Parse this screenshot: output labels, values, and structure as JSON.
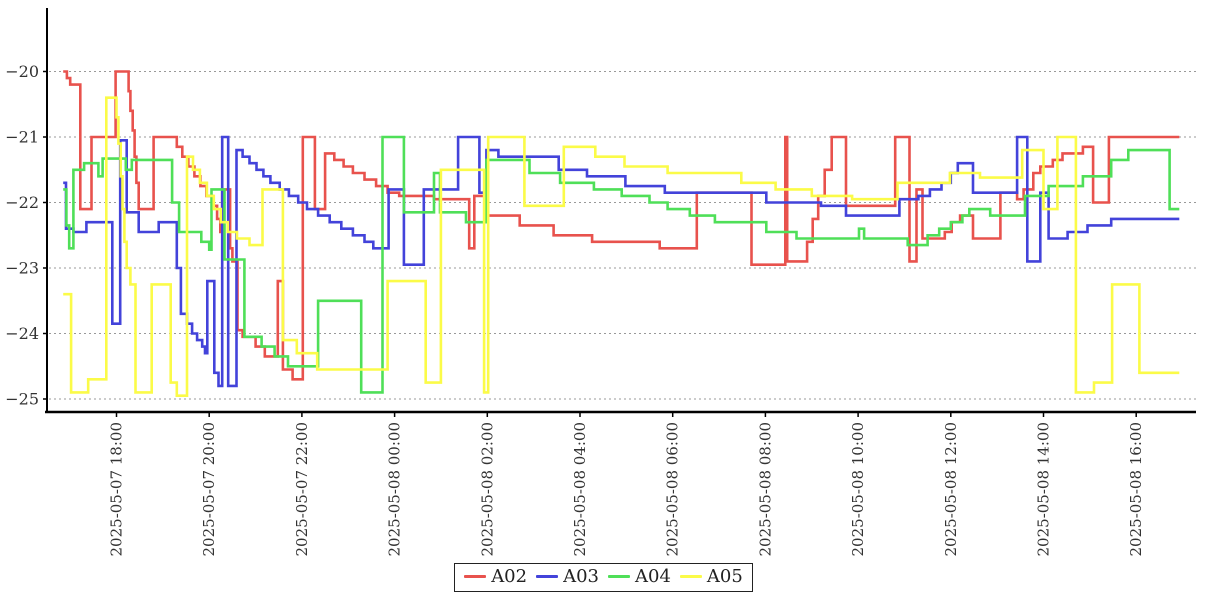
{
  "chart_data": {
    "type": "line",
    "step": true,
    "title": "",
    "xlabel": "",
    "ylabel": "",
    "grid": "horizontal-dotted",
    "legend_position": "bottom-center",
    "t_end": 22.93,
    "x_axis": {
      "tick_hours": [
        0,
        2,
        4,
        6,
        8,
        10,
        12,
        14,
        16,
        18,
        20,
        22
      ],
      "tick_labels": [
        "2025-05-07 18:00",
        "2025-05-07 20:00",
        "2025-05-07 22:00",
        "2025-05-08 00:00",
        "2025-05-08 02:00",
        "2025-05-08 04:00",
        "2025-05-08 06:00",
        "2025-05-08 08:00",
        "2025-05-08 10:00",
        "2025-05-08 12:00",
        "2025-05-08 14:00",
        "2025-05-08 16:00"
      ]
    },
    "y_axis": {
      "ticks": [
        -20,
        -21,
        -22,
        -23,
        -24,
        -25
      ],
      "tick_labels": [
        "−20",
        "−21",
        "−22",
        "−23",
        "−24",
        "−25"
      ],
      "range": [
        -25.4,
        -19.0
      ]
    },
    "series": [
      {
        "name": "A02",
        "color": "#e8524d",
        "points": [
          [
            -1.15,
            -20.0
          ],
          [
            -1.07,
            -20.1
          ],
          [
            -1.0,
            -20.2
          ],
          [
            -0.78,
            -22.1
          ],
          [
            -0.54,
            -21.0
          ],
          [
            -0.02,
            -20.0
          ],
          [
            0.26,
            -20.3
          ],
          [
            0.3,
            -20.6
          ],
          [
            0.35,
            -20.9
          ],
          [
            0.39,
            -21.3
          ],
          [
            0.43,
            -21.7
          ],
          [
            0.48,
            -22.1
          ],
          [
            0.8,
            -21.0
          ],
          [
            1.3,
            -21.15
          ],
          [
            1.42,
            -21.3
          ],
          [
            1.55,
            -21.45
          ],
          [
            1.68,
            -21.6
          ],
          [
            1.81,
            -21.75
          ],
          [
            1.94,
            -21.9
          ],
          [
            2.07,
            -22.05
          ],
          [
            2.17,
            -22.25
          ],
          [
            2.24,
            -22.45
          ],
          [
            2.28,
            -21.8
          ],
          [
            2.45,
            -22.7
          ],
          [
            2.5,
            -22.9
          ],
          [
            2.61,
            -23.95
          ],
          [
            2.72,
            -24.05
          ],
          [
            3.0,
            -24.2
          ],
          [
            3.2,
            -24.35
          ],
          [
            3.48,
            -23.2
          ],
          [
            3.59,
            -24.55
          ],
          [
            3.8,
            -24.7
          ],
          [
            4.02,
            -21.0
          ],
          [
            4.28,
            -22.1
          ],
          [
            4.5,
            -21.25
          ],
          [
            4.7,
            -21.35
          ],
          [
            4.9,
            -21.45
          ],
          [
            5.1,
            -21.55
          ],
          [
            5.35,
            -21.65
          ],
          [
            5.6,
            -21.75
          ],
          [
            5.85,
            -21.85
          ],
          [
            6.1,
            -21.9
          ],
          [
            6.85,
            -21.95
          ],
          [
            7.61,
            -22.7
          ],
          [
            7.72,
            -21.9
          ],
          [
            8.02,
            -22.2
          ],
          [
            8.7,
            -22.35
          ],
          [
            9.43,
            -22.5
          ],
          [
            10.26,
            -22.6
          ],
          [
            11.72,
            -22.7
          ],
          [
            12.52,
            -21.85
          ],
          [
            13.7,
            -22.95
          ],
          [
            14.43,
            -21.0
          ],
          [
            14.47,
            -22.9
          ],
          [
            14.9,
            -22.6
          ],
          [
            15.02,
            -22.25
          ],
          [
            15.14,
            -21.9
          ],
          [
            15.28,
            -21.5
          ],
          [
            15.43,
            -21.0
          ],
          [
            15.74,
            -22.05
          ],
          [
            16.8,
            -21.0
          ],
          [
            17.11,
            -22.9
          ],
          [
            17.26,
            -21.8
          ],
          [
            17.39,
            -22.55
          ],
          [
            17.87,
            -22.45
          ],
          [
            18.02,
            -22.3
          ],
          [
            18.2,
            -22.2
          ],
          [
            18.48,
            -22.55
          ],
          [
            19.07,
            -21.85
          ],
          [
            19.43,
            -21.95
          ],
          [
            19.57,
            -21.8
          ],
          [
            19.78,
            -21.55
          ],
          [
            19.93,
            -21.45
          ],
          [
            20.2,
            -21.35
          ],
          [
            20.41,
            -21.25
          ],
          [
            20.85,
            -21.15
          ],
          [
            21.07,
            -22.0
          ],
          [
            21.41,
            -21.0
          ]
        ]
      },
      {
        "name": "A03",
        "color": "#4343da",
        "points": [
          [
            -1.15,
            -21.7
          ],
          [
            -1.09,
            -22.4
          ],
          [
            -0.93,
            -22.45
          ],
          [
            -0.65,
            -22.3
          ],
          [
            -0.09,
            -23.85
          ],
          [
            0.08,
            -21.05
          ],
          [
            0.22,
            -22.15
          ],
          [
            0.48,
            -22.45
          ],
          [
            0.91,
            -22.3
          ],
          [
            1.3,
            -23.0
          ],
          [
            1.39,
            -23.7
          ],
          [
            1.52,
            -23.85
          ],
          [
            1.63,
            -24.0
          ],
          [
            1.74,
            -24.1
          ],
          [
            1.85,
            -24.2
          ],
          [
            1.91,
            -24.3
          ],
          [
            1.96,
            -23.2
          ],
          [
            2.11,
            -24.6
          ],
          [
            2.2,
            -24.8
          ],
          [
            2.28,
            -21.0
          ],
          [
            2.41,
            -24.8
          ],
          [
            2.59,
            -21.2
          ],
          [
            2.72,
            -21.3
          ],
          [
            2.87,
            -21.4
          ],
          [
            3.02,
            -21.5
          ],
          [
            3.17,
            -21.6
          ],
          [
            3.32,
            -21.7
          ],
          [
            3.52,
            -21.8
          ],
          [
            3.72,
            -21.9
          ],
          [
            3.92,
            -22.0
          ],
          [
            4.11,
            -22.1
          ],
          [
            4.35,
            -22.2
          ],
          [
            4.6,
            -22.3
          ],
          [
            4.85,
            -22.4
          ],
          [
            5.1,
            -22.5
          ],
          [
            5.35,
            -22.6
          ],
          [
            5.54,
            -22.7
          ],
          [
            5.87,
            -21.8
          ],
          [
            6.2,
            -22.95
          ],
          [
            6.63,
            -21.8
          ],
          [
            7.37,
            -21.0
          ],
          [
            7.83,
            -21.85
          ],
          [
            7.98,
            -21.2
          ],
          [
            8.24,
            -21.3
          ],
          [
            9.54,
            -21.5
          ],
          [
            10.15,
            -21.6
          ],
          [
            10.98,
            -21.75
          ],
          [
            11.83,
            -21.85
          ],
          [
            14.02,
            -22.0
          ],
          [
            15.2,
            -22.05
          ],
          [
            15.74,
            -22.2
          ],
          [
            16.89,
            -21.95
          ],
          [
            17.3,
            -21.9
          ],
          [
            17.55,
            -21.8
          ],
          [
            17.8,
            -21.7
          ],
          [
            18.0,
            -21.55
          ],
          [
            18.15,
            -21.4
          ],
          [
            18.48,
            -21.85
          ],
          [
            19.43,
            -21.0
          ],
          [
            19.65,
            -22.9
          ],
          [
            19.93,
            -21.85
          ],
          [
            20.11,
            -22.55
          ],
          [
            20.52,
            -22.45
          ],
          [
            20.95,
            -22.35
          ],
          [
            21.46,
            -22.25
          ]
        ]
      },
      {
        "name": "A04",
        "color": "#4fdf58",
        "points": [
          [
            -1.15,
            -21.8
          ],
          [
            -1.08,
            -22.35
          ],
          [
            -1.02,
            -22.7
          ],
          [
            -0.93,
            -21.5
          ],
          [
            -0.7,
            -21.4
          ],
          [
            -0.39,
            -21.6
          ],
          [
            -0.3,
            -21.33
          ],
          [
            0.2,
            -21.5
          ],
          [
            0.33,
            -21.35
          ],
          [
            1.2,
            -22.0
          ],
          [
            1.35,
            -22.45
          ],
          [
            1.83,
            -22.6
          ],
          [
            2.0,
            -22.72
          ],
          [
            2.05,
            -21.8
          ],
          [
            2.33,
            -22.87
          ],
          [
            2.76,
            -24.05
          ],
          [
            3.13,
            -24.2
          ],
          [
            3.41,
            -24.35
          ],
          [
            3.7,
            -24.5
          ],
          [
            4.35,
            -23.5
          ],
          [
            5.28,
            -24.9
          ],
          [
            5.74,
            -21.0
          ],
          [
            6.2,
            -22.15
          ],
          [
            6.85,
            -21.55
          ],
          [
            6.98,
            -22.15
          ],
          [
            7.54,
            -22.3
          ],
          [
            7.98,
            -21.35
          ],
          [
            8.91,
            -21.55
          ],
          [
            9.57,
            -21.7
          ],
          [
            10.3,
            -21.8
          ],
          [
            10.9,
            -21.9
          ],
          [
            11.5,
            -22.0
          ],
          [
            11.89,
            -22.1
          ],
          [
            12.37,
            -22.2
          ],
          [
            12.91,
            -22.3
          ],
          [
            14.02,
            -22.45
          ],
          [
            14.67,
            -22.55
          ],
          [
            16.02,
            -22.4
          ],
          [
            16.13,
            -22.55
          ],
          [
            17.07,
            -22.65
          ],
          [
            17.5,
            -22.5
          ],
          [
            17.75,
            -22.4
          ],
          [
            18.0,
            -22.3
          ],
          [
            18.25,
            -22.2
          ],
          [
            18.4,
            -22.1
          ],
          [
            18.85,
            -22.2
          ],
          [
            19.6,
            -21.9
          ],
          [
            20.11,
            -21.75
          ],
          [
            20.85,
            -21.6
          ],
          [
            21.46,
            -21.35
          ],
          [
            21.83,
            -21.2
          ],
          [
            22.72,
            -22.1
          ]
        ]
      },
      {
        "name": "A05",
        "color": "#fbfb48",
        "points": [
          [
            -1.15,
            -23.4
          ],
          [
            -0.98,
            -24.9
          ],
          [
            -0.61,
            -24.7
          ],
          [
            -0.22,
            -20.4
          ],
          [
            0.0,
            -20.7
          ],
          [
            0.04,
            -21.1
          ],
          [
            0.09,
            -21.6
          ],
          [
            0.13,
            -22.1
          ],
          [
            0.17,
            -22.6
          ],
          [
            0.22,
            -23.0
          ],
          [
            0.3,
            -23.25
          ],
          [
            0.41,
            -24.9
          ],
          [
            0.76,
            -23.25
          ],
          [
            1.17,
            -24.75
          ],
          [
            1.3,
            -24.95
          ],
          [
            1.52,
            -21.3
          ],
          [
            1.65,
            -21.5
          ],
          [
            1.8,
            -21.7
          ],
          [
            1.95,
            -21.9
          ],
          [
            2.1,
            -22.1
          ],
          [
            2.25,
            -22.3
          ],
          [
            2.4,
            -22.45
          ],
          [
            2.6,
            -22.55
          ],
          [
            2.87,
            -22.65
          ],
          [
            3.15,
            -21.8
          ],
          [
            3.59,
            -24.1
          ],
          [
            3.89,
            -24.3
          ],
          [
            4.33,
            -24.55
          ],
          [
            5.85,
            -23.2
          ],
          [
            6.67,
            -24.75
          ],
          [
            7.0,
            -21.5
          ],
          [
            7.93,
            -24.9
          ],
          [
            8.02,
            -21.0
          ],
          [
            8.8,
            -22.05
          ],
          [
            9.65,
            -21.15
          ],
          [
            10.33,
            -21.3
          ],
          [
            10.96,
            -21.45
          ],
          [
            11.89,
            -21.55
          ],
          [
            13.48,
            -21.7
          ],
          [
            14.22,
            -21.8
          ],
          [
            15.0,
            -21.9
          ],
          [
            15.87,
            -21.95
          ],
          [
            16.85,
            -21.7
          ],
          [
            17.98,
            -21.55
          ],
          [
            18.63,
            -21.62
          ],
          [
            19.54,
            -21.2
          ],
          [
            20.0,
            -22.1
          ],
          [
            20.3,
            -21.0
          ],
          [
            20.7,
            -24.9
          ],
          [
            21.09,
            -24.75
          ],
          [
            21.48,
            -23.25
          ],
          [
            22.07,
            -24.6
          ]
        ]
      }
    ]
  }
}
